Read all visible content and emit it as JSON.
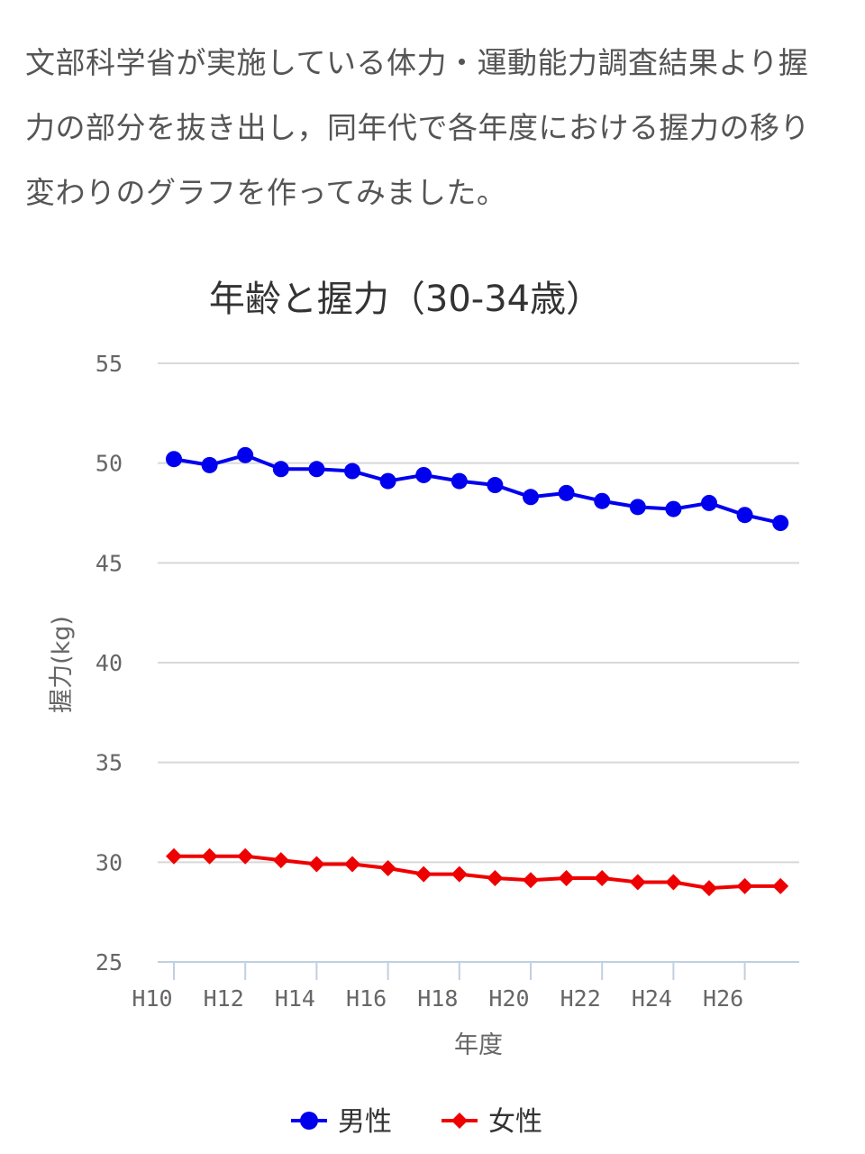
{
  "intro_text": "文部科学省が実施している体力・運動能力調査結果より握力の部分を抜き出し，同年代で各年度における握力の移り変わりのグラフを作ってみました。",
  "chart_data": {
    "type": "line",
    "title": "年齢と握力（30-34歳）",
    "xlabel": "年度",
    "ylabel": "握力(kg)",
    "categories": [
      "H10",
      "H11",
      "H12",
      "H13",
      "H14",
      "H15",
      "H16",
      "H17",
      "H18",
      "H19",
      "H20",
      "H21",
      "H22",
      "H23",
      "H24",
      "H25",
      "H26",
      "H27"
    ],
    "x_tick_labels": [
      "H10",
      "H12",
      "H14",
      "H16",
      "H18",
      "H20",
      "H22",
      "H24",
      "H26"
    ],
    "ylim": [
      25,
      55
    ],
    "y_ticks": [
      25,
      30,
      35,
      40,
      45,
      50,
      55
    ],
    "grid": true,
    "legend_position": "bottom",
    "series": [
      {
        "name": "男性",
        "color": "#0000ee",
        "marker": "circle",
        "values": [
          50.2,
          49.9,
          50.4,
          49.7,
          49.7,
          49.6,
          49.1,
          49.4,
          49.1,
          48.9,
          48.3,
          48.5,
          48.1,
          47.8,
          47.7,
          48.0,
          47.4,
          47.0
        ]
      },
      {
        "name": "女性",
        "color": "#ee0000",
        "marker": "diamond",
        "values": [
          30.3,
          30.3,
          30.3,
          30.1,
          29.9,
          29.9,
          29.7,
          29.4,
          29.4,
          29.2,
          29.1,
          29.2,
          29.2,
          29.0,
          29.0,
          28.7,
          28.8,
          28.8
        ]
      }
    ]
  }
}
